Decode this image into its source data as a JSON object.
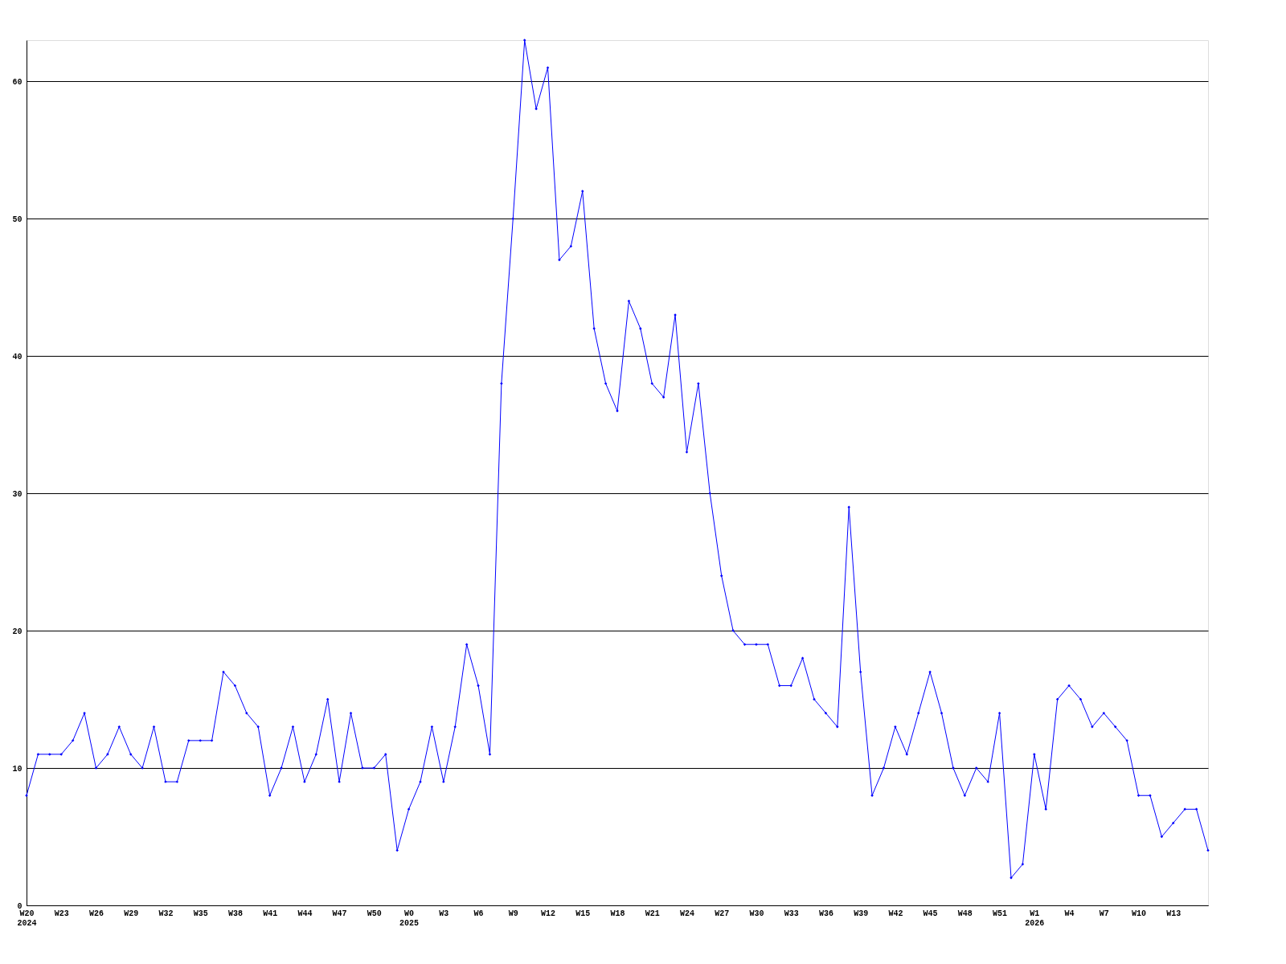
{
  "chart_data": {
    "type": "line",
    "categories": [
      "W20\n2024",
      null,
      null,
      "W23",
      null,
      null,
      "W26",
      null,
      null,
      "W29",
      null,
      null,
      "W32",
      null,
      null,
      "W35",
      null,
      null,
      "W38",
      null,
      null,
      "W41",
      null,
      null,
      "W44",
      null,
      null,
      "W47",
      null,
      null,
      "W50",
      null,
      null,
      "W0\n2025",
      null,
      null,
      "W3",
      null,
      null,
      "W6",
      null,
      null,
      "W9",
      null,
      null,
      "W12",
      null,
      null,
      "W15",
      null,
      null,
      "W18",
      null,
      null,
      "W21",
      null,
      null,
      "W24",
      null,
      null,
      "W27",
      null,
      null,
      "W30",
      null,
      null,
      "W33",
      null,
      null,
      "W36",
      null,
      null,
      "W39",
      null,
      null,
      "W42",
      null,
      null,
      "W45",
      null,
      null,
      "W48",
      null,
      null,
      "W51",
      null,
      null,
      "W1\n2026",
      null,
      null,
      "W4",
      null,
      null,
      "W7",
      null,
      null,
      "W10",
      null,
      null,
      "W13",
      null,
      null,
      null
    ],
    "series": [
      {
        "color": "#0000ff",
        "values": [
          8,
          11,
          11,
          11,
          12,
          14,
          10,
          11,
          13,
          11,
          10,
          13,
          9,
          9,
          12,
          12,
          12,
          17,
          16,
          14,
          13,
          8,
          10,
          13,
          9,
          11,
          15,
          9,
          14,
          10,
          10,
          11,
          4,
          7,
          9,
          13,
          9,
          13,
          19,
          16,
          11,
          38,
          50,
          63,
          58,
          61,
          47,
          48,
          52,
          42,
          38,
          36,
          44,
          42,
          38,
          37,
          43,
          33,
          38,
          30,
          24,
          20,
          19,
          19,
          19,
          16,
          16,
          18,
          15,
          14,
          13,
          29,
          17,
          8,
          10,
          13,
          11,
          14,
          17,
          14,
          10,
          8,
          10,
          9,
          14,
          2,
          3,
          11,
          7,
          15,
          16,
          15,
          13,
          14,
          13,
          12,
          8,
          8,
          5,
          6,
          7,
          7,
          4
        ]
      }
    ],
    "ylim": [
      0,
      63
    ],
    "yticks": [
      0,
      10,
      20,
      30,
      40,
      50,
      60
    ],
    "grid": "y",
    "marker": "diamond",
    "line_style": "solid"
  }
}
